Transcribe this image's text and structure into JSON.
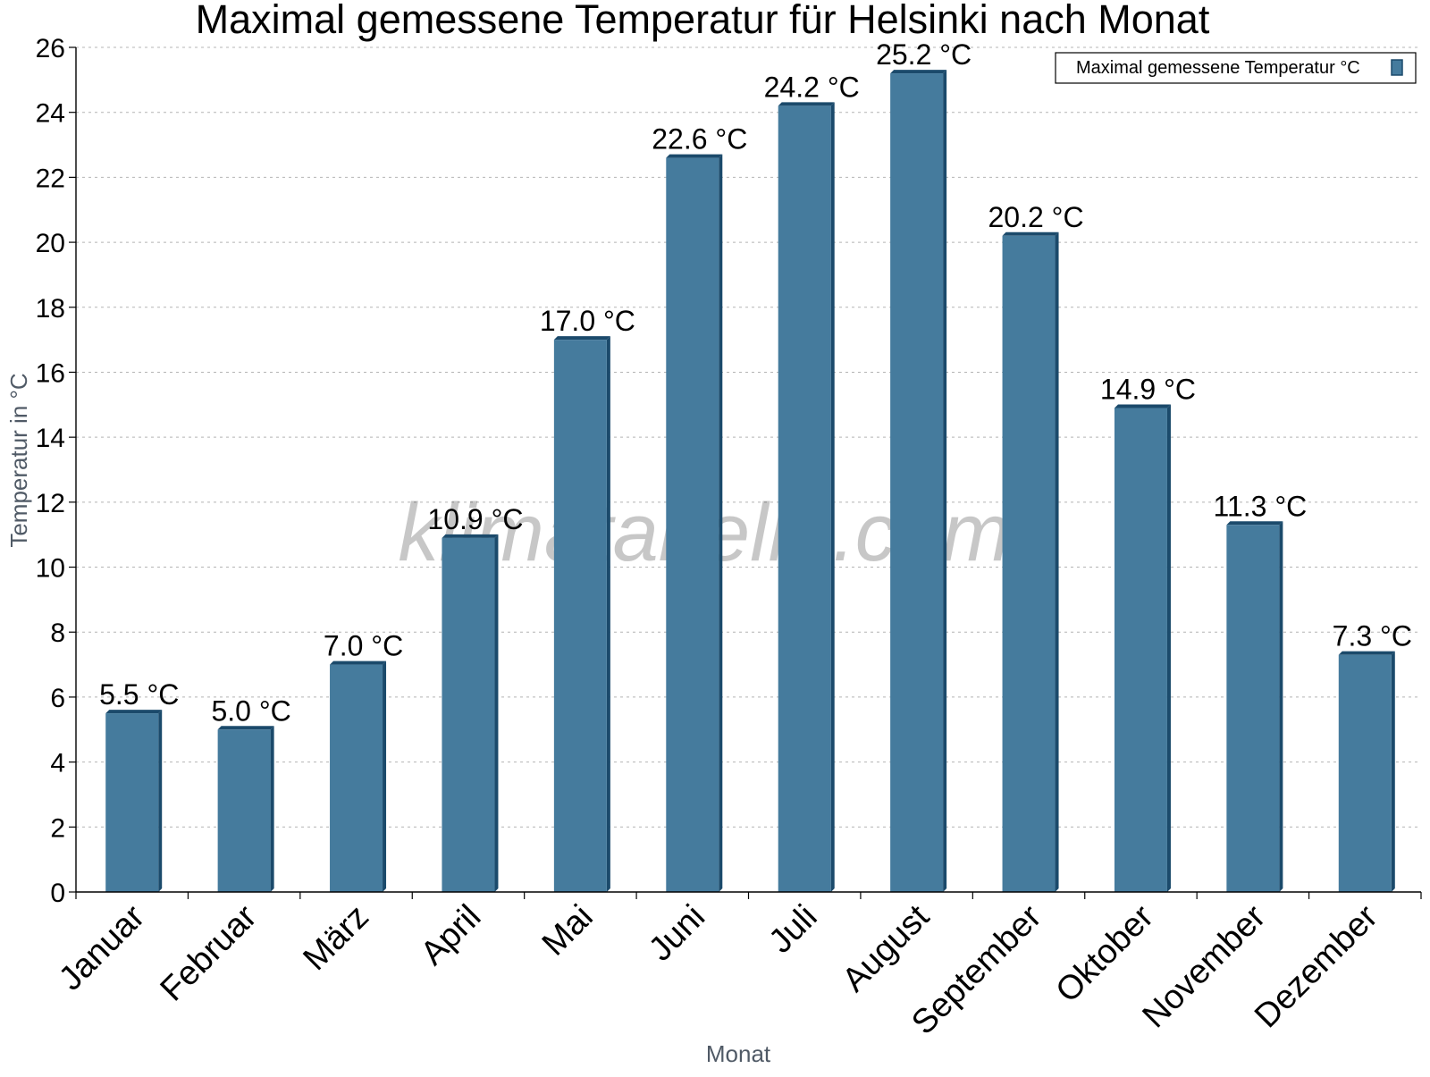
{
  "chart_data": {
    "type": "bar",
    "title": "Maximal gemessene Temperatur für Helsinki nach Monat",
    "xlabel": "Monat",
    "ylabel": "Temperatur in °C",
    "ylim": [
      0,
      26
    ],
    "yticks": [
      0,
      2,
      4,
      6,
      8,
      10,
      12,
      14,
      16,
      18,
      20,
      22,
      24,
      26
    ],
    "grid": true,
    "legend_position": "top-right",
    "categories": [
      "Januar",
      "Februar",
      "März",
      "April",
      "Mai",
      "Juni",
      "Juli",
      "August",
      "September",
      "Oktober",
      "November",
      "Dezember"
    ],
    "series": [
      {
        "name": "Maximal gemessene Temperatur °C",
        "values": [
          5.5,
          5.0,
          7.0,
          10.9,
          17.0,
          22.6,
          24.2,
          25.2,
          20.2,
          14.9,
          11.3,
          7.3
        ],
        "labels": [
          "5.5 °C",
          "5.0 °C",
          "7.0 °C",
          "10.9 °C",
          "17.0 °C",
          "22.6 °C",
          "24.2 °C",
          "25.2 °C",
          "20.2 °C",
          "14.9 °C",
          "11.3 °C",
          "7.3 °C"
        ],
        "color": "#457b9d",
        "edge_color": "#1b4a6b"
      }
    ],
    "watermark": "klimatabelle.com"
  }
}
